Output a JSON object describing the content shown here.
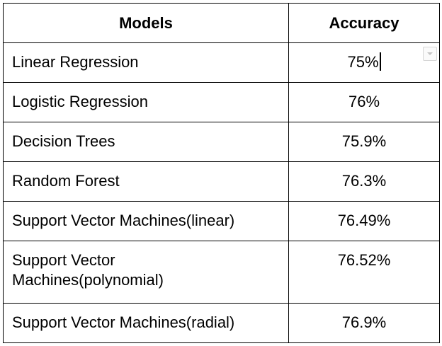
{
  "table": {
    "headers": {
      "model": "Models",
      "accuracy": "Accuracy"
    },
    "rows": [
      {
        "model": "Linear Regression",
        "accuracy": "75%"
      },
      {
        "model": "Logistic Regression",
        "accuracy": "76%"
      },
      {
        "model": "Decision Trees",
        "accuracy": "75.9%"
      },
      {
        "model": "Random Forest",
        "accuracy": "76.3%"
      },
      {
        "model": "Support Vector Machines(linear)",
        "accuracy": "76.49%"
      },
      {
        "model": "Support Vector Machines(polynomial)",
        "accuracy": "76.52%"
      },
      {
        "model": "Support Vector Machines(radial)",
        "accuracy": "76.9%"
      }
    ]
  },
  "icons": {
    "dropdown": "chevron-down-icon"
  }
}
